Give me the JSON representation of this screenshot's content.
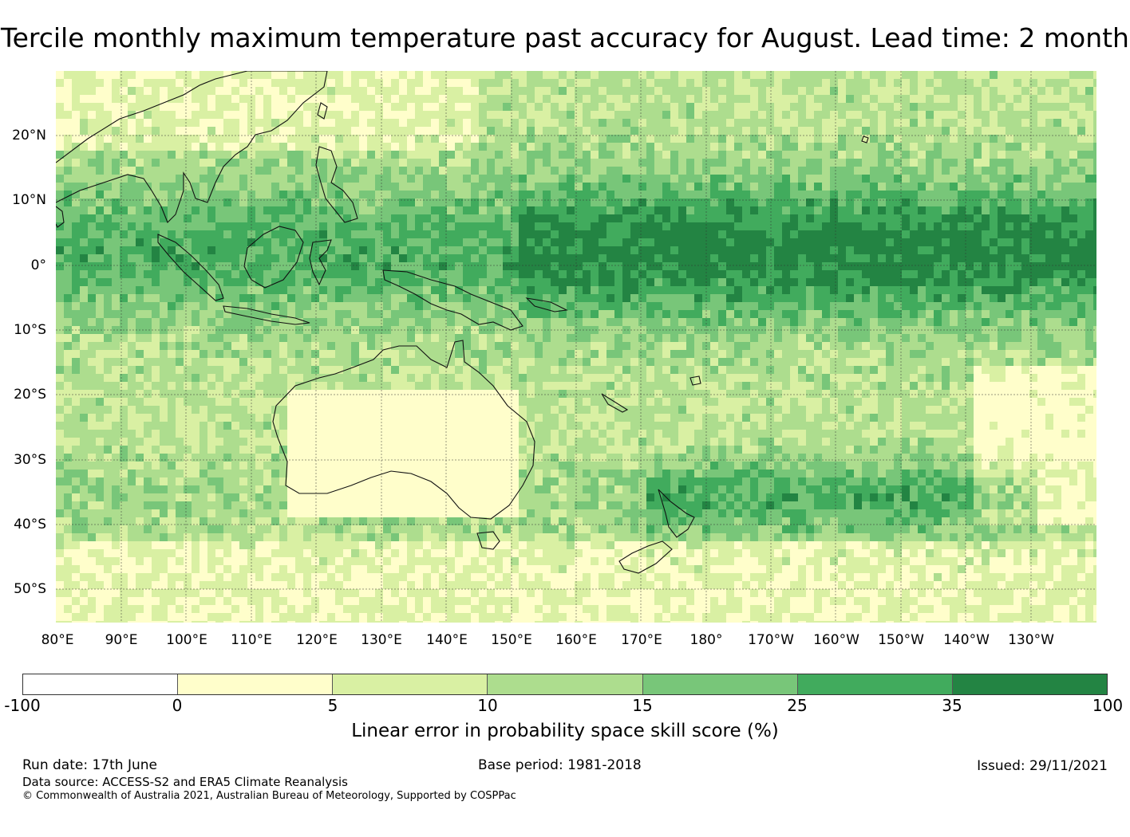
{
  "title": "Tercile monthly maximum temperature past accuracy for August. Lead time: 2 month",
  "map": {
    "lat_labels": [
      "20°N",
      "10°N",
      "0°",
      "10°S",
      "20°S",
      "30°S",
      "40°S",
      "50°S"
    ],
    "lon_labels": [
      "80°E",
      "90°E",
      "100°E",
      "110°E",
      "120°E",
      "130°E",
      "140°E",
      "150°E",
      "160°E",
      "170°E",
      "180°",
      "170°W",
      "160°W",
      "150°W",
      "140°W",
      "130°W"
    ],
    "extent": {
      "lon_min": 80,
      "lon_max": 240,
      "lat_min": -55,
      "lat_max": 30
    },
    "land_fill_note": "",
    "colors": [
      "#ffffff",
      "#fffecb",
      "#d9f0a3",
      "#addd8e",
      "#78c679",
      "#41ab5d",
      "#238443"
    ]
  },
  "colorbar": {
    "ticks": [
      "-100",
      "0",
      "5",
      "10",
      "15",
      "25",
      "35",
      "100"
    ],
    "label": "Linear error in probability space skill score (%)"
  },
  "footer": {
    "run_date": "Run date: 17th June",
    "base_period": "Base period: 1981-2018",
    "issued": "Issued: 29/11/2021",
    "data_source": "Data source: ACCESS-S2 and ERA5 Climate Reanalysis",
    "copyright": "© Commonwealth of Australia 2021, Australian Bureau of Meteorology, Supported by COSPPac"
  }
}
